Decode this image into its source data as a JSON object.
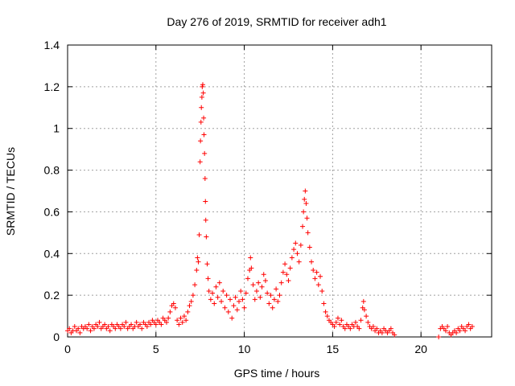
{
  "chart_data": {
    "type": "scatter",
    "title": "Day 276 of 2019, SRMTID for receiver adh1",
    "xlabel": "GPS time / hours",
    "ylabel": "SRMTID / TECUs",
    "xlim": [
      0,
      24
    ],
    "ylim": [
      0,
      1.4
    ],
    "x_ticks": [
      0,
      5,
      10,
      15,
      20
    ],
    "x_tick_labels": [
      "0",
      "5",
      "10",
      "15",
      "20"
    ],
    "y_ticks": [
      0,
      0.2,
      0.4,
      0.6,
      0.8,
      1.0,
      1.2,
      1.4
    ],
    "y_tick_labels": [
      "0",
      "0.2",
      "0.4",
      "0.6",
      "0.8",
      "1",
      "1.2",
      "1.4"
    ],
    "grid": true,
    "marker": "+",
    "series": [
      {
        "name": "SRMTID",
        "color": "#ff0000",
        "points": [
          [
            0.0,
            0.03
          ],
          [
            0.1,
            0.04
          ],
          [
            0.2,
            0.02
          ],
          [
            0.3,
            0.03
          ],
          [
            0.4,
            0.05
          ],
          [
            0.5,
            0.03
          ],
          [
            0.6,
            0.04
          ],
          [
            0.7,
            0.02
          ],
          [
            0.8,
            0.05
          ],
          [
            0.9,
            0.04
          ],
          [
            1.0,
            0.05
          ],
          [
            1.1,
            0.04
          ],
          [
            1.2,
            0.06
          ],
          [
            1.3,
            0.03
          ],
          [
            1.4,
            0.05
          ],
          [
            1.5,
            0.04
          ],
          [
            1.6,
            0.06
          ],
          [
            1.7,
            0.05
          ],
          [
            1.8,
            0.07
          ],
          [
            1.9,
            0.04
          ],
          [
            2.0,
            0.05
          ],
          [
            2.1,
            0.06
          ],
          [
            2.2,
            0.04
          ],
          [
            2.3,
            0.05
          ],
          [
            2.4,
            0.03
          ],
          [
            2.5,
            0.06
          ],
          [
            2.6,
            0.05
          ],
          [
            2.7,
            0.04
          ],
          [
            2.8,
            0.06
          ],
          [
            2.9,
            0.05
          ],
          [
            3.0,
            0.04
          ],
          [
            3.1,
            0.06
          ],
          [
            3.2,
            0.05
          ],
          [
            3.3,
            0.07
          ],
          [
            3.4,
            0.04
          ],
          [
            3.5,
            0.05
          ],
          [
            3.6,
            0.06
          ],
          [
            3.7,
            0.04
          ],
          [
            3.8,
            0.05
          ],
          [
            3.9,
            0.07
          ],
          [
            4.0,
            0.05
          ],
          [
            4.1,
            0.06
          ],
          [
            4.2,
            0.04
          ],
          [
            4.3,
            0.07
          ],
          [
            4.4,
            0.06
          ],
          [
            4.5,
            0.05
          ],
          [
            4.6,
            0.07
          ],
          [
            4.7,
            0.06
          ],
          [
            4.8,
            0.08
          ],
          [
            4.9,
            0.07
          ],
          [
            5.0,
            0.06
          ],
          [
            5.1,
            0.08
          ],
          [
            5.2,
            0.07
          ],
          [
            5.3,
            0.06
          ],
          [
            5.4,
            0.09
          ],
          [
            5.5,
            0.08
          ],
          [
            5.6,
            0.07
          ],
          [
            5.7,
            0.09
          ],
          [
            5.8,
            0.12
          ],
          [
            5.9,
            0.15
          ],
          [
            6.0,
            0.16
          ],
          [
            6.1,
            0.14
          ],
          [
            6.2,
            0.08
          ],
          [
            6.3,
            0.06
          ],
          [
            6.4,
            0.09
          ],
          [
            6.5,
            0.07
          ],
          [
            6.6,
            0.1
          ],
          [
            6.7,
            0.08
          ],
          [
            6.8,
            0.12
          ],
          [
            6.9,
            0.15
          ],
          [
            7.0,
            0.17
          ],
          [
            7.1,
            0.2
          ],
          [
            7.2,
            0.25
          ],
          [
            7.3,
            0.32
          ],
          [
            7.35,
            0.38
          ],
          [
            7.4,
            0.36
          ],
          [
            7.45,
            0.49
          ],
          [
            7.5,
            0.84
          ],
          [
            7.52,
            0.94
          ],
          [
            7.55,
            1.03
          ],
          [
            7.57,
            1.1
          ],
          [
            7.6,
            1.15
          ],
          [
            7.62,
            1.2
          ],
          [
            7.65,
            1.21
          ],
          [
            7.68,
            1.17
          ],
          [
            7.7,
            1.05
          ],
          [
            7.72,
            0.97
          ],
          [
            7.75,
            0.88
          ],
          [
            7.78,
            0.76
          ],
          [
            7.8,
            0.65
          ],
          [
            7.82,
            0.56
          ],
          [
            7.85,
            0.48
          ],
          [
            7.9,
            0.35
          ],
          [
            7.95,
            0.28
          ],
          [
            8.0,
            0.22
          ],
          [
            8.1,
            0.18
          ],
          [
            8.2,
            0.21
          ],
          [
            8.3,
            0.16
          ],
          [
            8.4,
            0.24
          ],
          [
            8.5,
            0.19
          ],
          [
            8.6,
            0.26
          ],
          [
            8.7,
            0.17
          ],
          [
            8.8,
            0.22
          ],
          [
            8.9,
            0.14
          ],
          [
            9.0,
            0.2
          ],
          [
            9.1,
            0.12
          ],
          [
            9.2,
            0.18
          ],
          [
            9.3,
            0.09
          ],
          [
            9.4,
            0.15
          ],
          [
            9.5,
            0.19
          ],
          [
            9.6,
            0.13
          ],
          [
            9.7,
            0.17
          ],
          [
            9.8,
            0.22
          ],
          [
            9.9,
            0.18
          ],
          [
            10.0,
            0.14
          ],
          [
            10.1,
            0.21
          ],
          [
            10.2,
            0.28
          ],
          [
            10.3,
            0.32
          ],
          [
            10.35,
            0.38
          ],
          [
            10.4,
            0.33
          ],
          [
            10.5,
            0.25
          ],
          [
            10.6,
            0.18
          ],
          [
            10.7,
            0.22
          ],
          [
            10.8,
            0.26
          ],
          [
            10.9,
            0.19
          ],
          [
            11.0,
            0.24
          ],
          [
            11.1,
            0.3
          ],
          [
            11.2,
            0.27
          ],
          [
            11.3,
            0.21
          ],
          [
            11.4,
            0.16
          ],
          [
            11.5,
            0.2
          ],
          [
            11.6,
            0.14
          ],
          [
            11.7,
            0.18
          ],
          [
            11.8,
            0.23
          ],
          [
            11.9,
            0.17
          ],
          [
            12.0,
            0.2
          ],
          [
            12.1,
            0.26
          ],
          [
            12.2,
            0.31
          ],
          [
            12.3,
            0.35
          ],
          [
            12.4,
            0.3
          ],
          [
            12.5,
            0.27
          ],
          [
            12.6,
            0.33
          ],
          [
            12.7,
            0.38
          ],
          [
            12.8,
            0.42
          ],
          [
            12.9,
            0.45
          ],
          [
            13.0,
            0.4
          ],
          [
            13.1,
            0.36
          ],
          [
            13.2,
            0.44
          ],
          [
            13.3,
            0.53
          ],
          [
            13.35,
            0.6
          ],
          [
            13.4,
            0.66
          ],
          [
            13.45,
            0.7
          ],
          [
            13.5,
            0.64
          ],
          [
            13.55,
            0.57
          ],
          [
            13.6,
            0.5
          ],
          [
            13.7,
            0.43
          ],
          [
            13.8,
            0.36
          ],
          [
            13.9,
            0.32
          ],
          [
            14.0,
            0.28
          ],
          [
            14.1,
            0.31
          ],
          [
            14.2,
            0.25
          ],
          [
            14.3,
            0.29
          ],
          [
            14.4,
            0.22
          ],
          [
            14.5,
            0.16
          ],
          [
            14.6,
            0.12
          ],
          [
            14.7,
            0.1
          ],
          [
            14.8,
            0.08
          ],
          [
            14.9,
            0.07
          ],
          [
            15.0,
            0.06
          ],
          [
            15.1,
            0.05
          ],
          [
            15.2,
            0.07
          ],
          [
            15.3,
            0.09
          ],
          [
            15.4,
            0.06
          ],
          [
            15.5,
            0.08
          ],
          [
            15.6,
            0.05
          ],
          [
            15.7,
            0.04
          ],
          [
            15.8,
            0.06
          ],
          [
            15.9,
            0.05
          ],
          [
            16.0,
            0.04
          ],
          [
            16.1,
            0.06
          ],
          [
            16.2,
            0.05
          ],
          [
            16.3,
            0.07
          ],
          [
            16.4,
            0.05
          ],
          [
            16.5,
            0.04
          ],
          [
            16.6,
            0.08
          ],
          [
            16.7,
            0.14
          ],
          [
            16.75,
            0.17
          ],
          [
            16.8,
            0.13
          ],
          [
            16.9,
            0.1
          ],
          [
            17.0,
            0.07
          ],
          [
            17.1,
            0.05
          ],
          [
            17.2,
            0.04
          ],
          [
            17.3,
            0.05
          ],
          [
            17.4,
            0.03
          ],
          [
            17.5,
            0.04
          ],
          [
            17.6,
            0.02
          ],
          [
            17.7,
            0.03
          ],
          [
            17.8,
            0.02
          ],
          [
            17.9,
            0.04
          ],
          [
            18.0,
            0.03
          ],
          [
            18.1,
            0.02
          ],
          [
            18.2,
            0.03
          ],
          [
            18.3,
            0.04
          ],
          [
            18.4,
            0.02
          ],
          [
            18.5,
            0.01
          ],
          [
            21.0,
            0.0
          ],
          [
            21.1,
            0.04
          ],
          [
            21.2,
            0.05
          ],
          [
            21.3,
            0.04
          ],
          [
            21.4,
            0.03
          ],
          [
            21.5,
            0.05
          ],
          [
            21.6,
            0.02
          ],
          [
            21.7,
            0.01
          ],
          [
            21.8,
            0.02
          ],
          [
            21.9,
            0.03
          ],
          [
            22.0,
            0.02
          ],
          [
            22.1,
            0.04
          ],
          [
            22.2,
            0.03
          ],
          [
            22.3,
            0.05
          ],
          [
            22.4,
            0.04
          ],
          [
            22.5,
            0.03
          ],
          [
            22.6,
            0.05
          ],
          [
            22.7,
            0.06
          ],
          [
            22.8,
            0.04
          ],
          [
            22.9,
            0.05
          ]
        ]
      }
    ]
  }
}
